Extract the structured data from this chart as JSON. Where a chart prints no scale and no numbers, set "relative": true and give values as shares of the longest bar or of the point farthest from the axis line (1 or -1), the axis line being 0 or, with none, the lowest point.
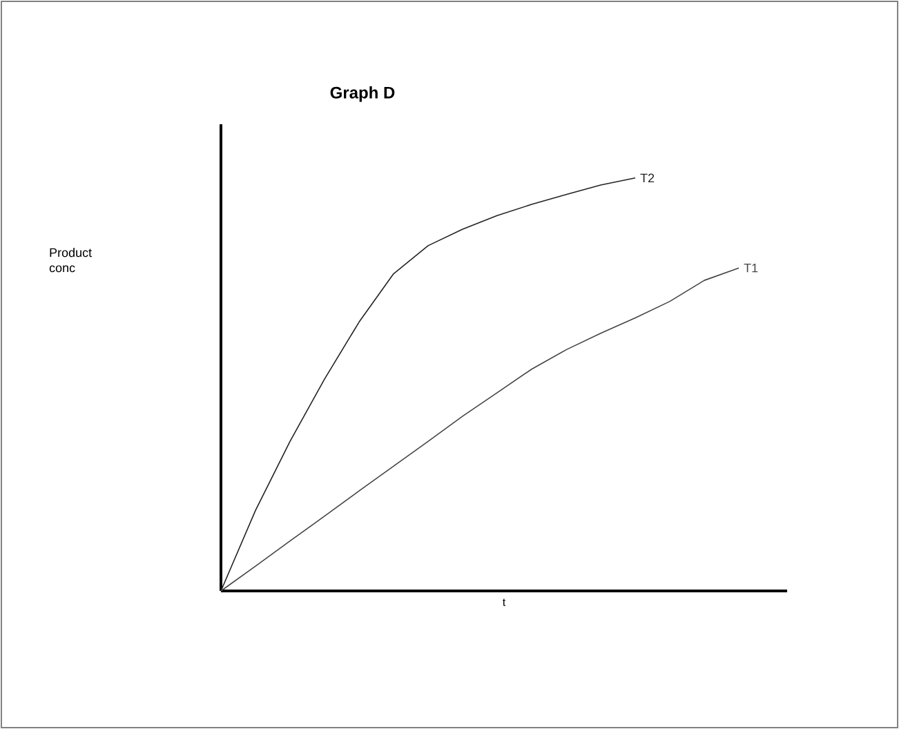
{
  "chart_data": {
    "type": "line",
    "title": "Graph D",
    "xlabel": "t",
    "annotations": [
      "Product conc"
    ],
    "relative": true,
    "categories": [
      null,
      null,
      null,
      null,
      null,
      null,
      null,
      null,
      null,
      null,
      null,
      null,
      null,
      null,
      null,
      null
    ],
    "marker": "none",
    "line_style": "solid",
    "series": [
      {
        "name": "T2",
        "color": "#222222",
        "values": [
          0,
          0.195,
          0.362,
          0.513,
          0.651,
          0.768,
          0.836,
          0.876,
          0.909,
          0.936,
          0.96,
          0.983,
          1,
          null,
          null,
          null
        ]
      },
      {
        "name": "T1",
        "color": "#444444",
        "values": [
          0,
          0.06,
          0.121,
          0.181,
          0.242,
          0.302,
          0.362,
          0.423,
          0.48,
          0.537,
          0.584,
          0.624,
          0.661,
          0.701,
          0.752,
          0.782
        ]
      }
    ]
  }
}
